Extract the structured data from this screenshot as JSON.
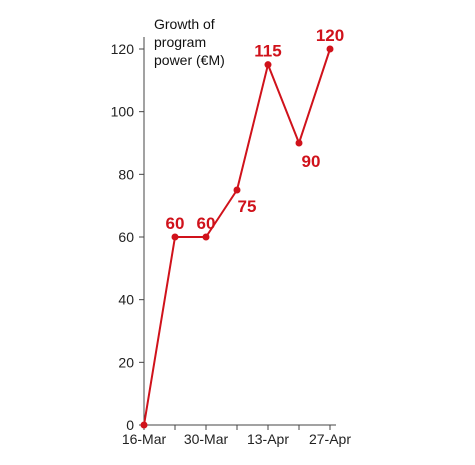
{
  "chart_data": {
    "type": "line",
    "title": [
      "Growth of",
      "program",
      "power (€M)"
    ],
    "x": [
      "16-Mar",
      "23-Mar",
      "30-Mar",
      "6-Apr",
      "13-Apr",
      "20-Apr",
      "27-Apr"
    ],
    "x_tick_labels": [
      "16-Mar",
      "30-Mar",
      "13-Apr",
      "27-Apr"
    ],
    "series": [
      {
        "values": [
          0,
          60,
          60,
          75,
          115,
          90,
          120
        ]
      }
    ],
    "data_labels": [
      "",
      "60",
      "60",
      "75",
      "115",
      "90",
      "120"
    ],
    "ylim": [
      0,
      120
    ],
    "y_ticks": [
      0,
      20,
      40,
      60,
      80,
      100,
      120
    ],
    "grid": false,
    "colors": {
      "line": "#d0121b",
      "axis": "#444444"
    }
  }
}
